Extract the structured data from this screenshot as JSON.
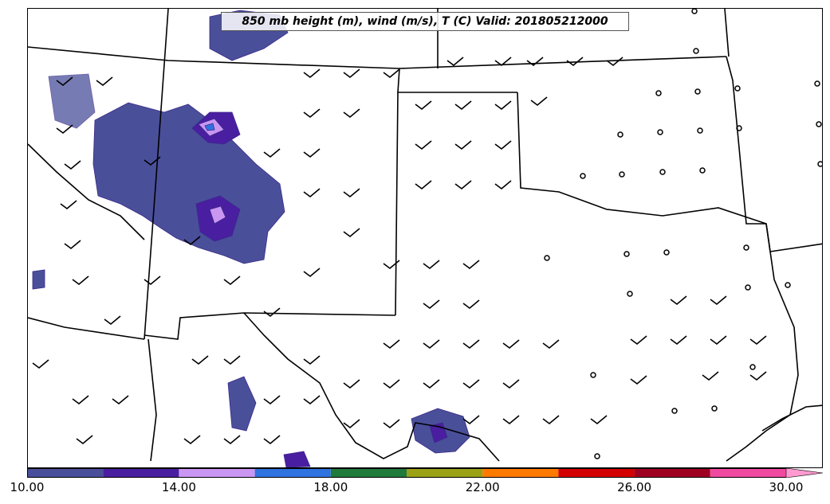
{
  "title": "850 mb height (m), wind (m/s), T (C) Valid: 201805212000",
  "colorbar": {
    "colors": [
      "#4a4f9a",
      "#4a1ea0",
      "#c996f2",
      "#2f73e0",
      "#1f7a3c",
      "#9aa115",
      "#ff7a00",
      "#d40000",
      "#a00020",
      "#f04aa0",
      "#ff9ad0"
    ],
    "tick_labels": [
      "10.00",
      "14.00",
      "18.00",
      "22.00",
      "26.00",
      "30.00"
    ]
  },
  "map": {
    "land_color": "#ffffff",
    "border_color": "#000000",
    "fill_colors": {
      "t10": "#4a4f9a",
      "t12": "#4a1ea0",
      "t14": "#c996f2",
      "t16": "#2f73e0"
    }
  }
}
